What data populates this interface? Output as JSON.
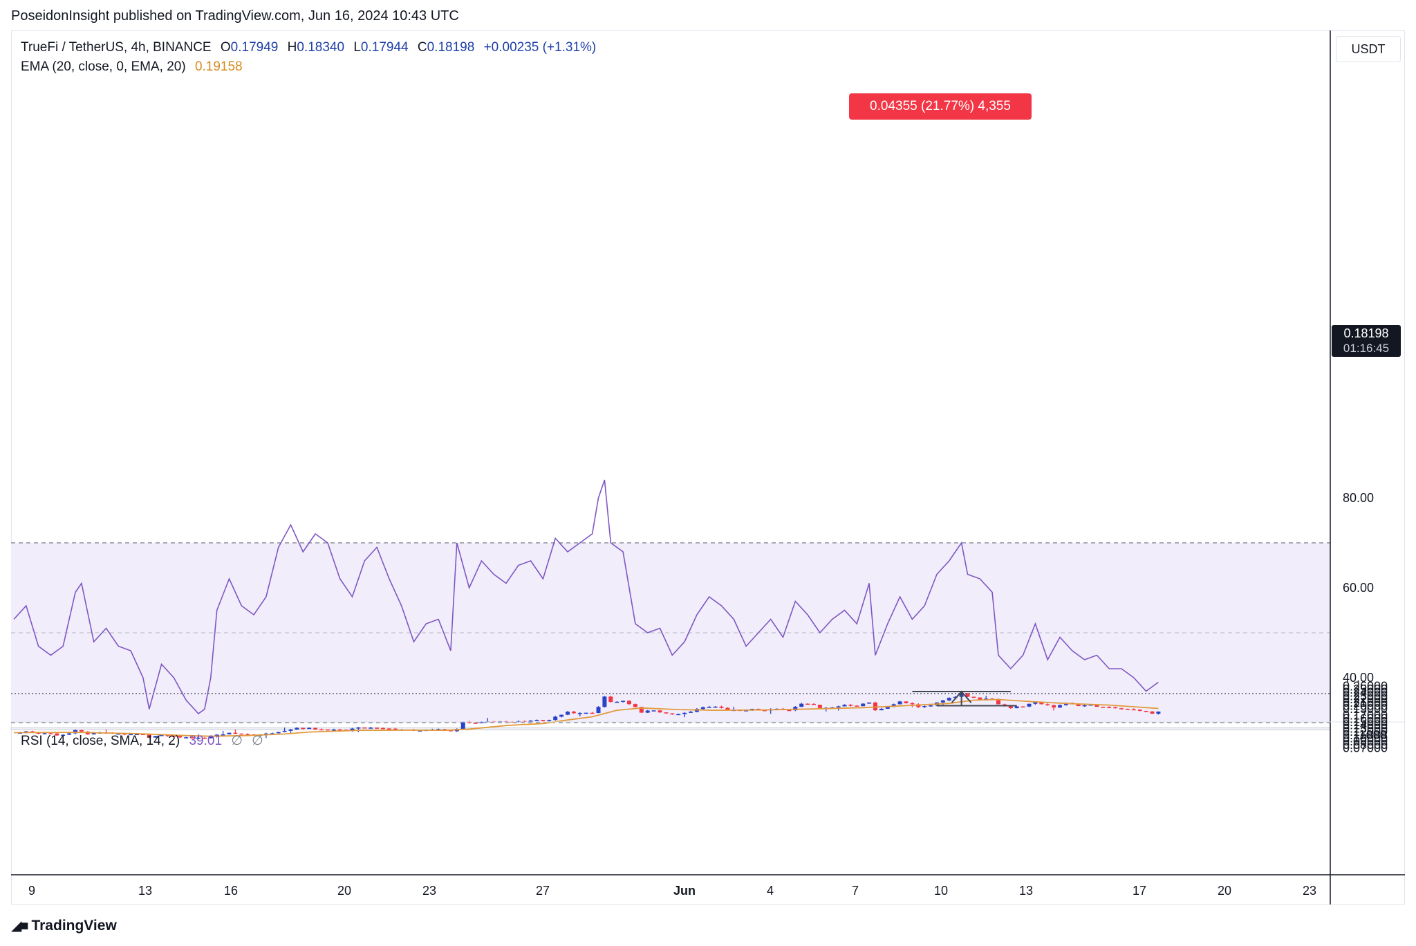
{
  "publish_line": "PoseidonInsight published on TradingView.com, Jun 16, 2024 10:43 UTC",
  "legend": {
    "symbol": "TrueFi / TetherUS, 4h, BINANCE",
    "open_label": "O",
    "open": "0.17949",
    "high_label": "H",
    "high": "0.18340",
    "low_label": "L",
    "low": "0.17944",
    "close_label": "C",
    "close": "0.18198",
    "change": "+0.00235 (+1.31%)",
    "ema_label": "EMA (20, close, 0, EMA, 20)",
    "ema_value": "0.19158",
    "rsi_label": "RSI (14, close, SMA, 14, 2)",
    "rsi_value": "39.01",
    "rsi_flag1": "∅",
    "rsi_flag2": "∅"
  },
  "currency": "USDT",
  "last_price": {
    "price": "0.18198",
    "countdown": "01:16:45"
  },
  "measure": {
    "label": "0.04355 (21.77%) 4,355"
  },
  "footer": {
    "brand": "TradingView"
  },
  "colors": {
    "up": "#2942c9",
    "down": "#f23645",
    "ema": "#e29a3a",
    "rsi": "#7e57c2",
    "zone": "#eceef4",
    "rsi_band": "#f1edfb"
  },
  "chart_data": [
    {
      "type": "candlestick",
      "title": "TrueFi / TetherUS, 4h, BINANCE",
      "ylabel": "USDT",
      "ylim": [
        0.065,
        0.265
      ],
      "yticks": [
        "0.26000",
        "0.25000",
        "0.24000",
        "0.23000",
        "0.22000",
        "0.21000",
        "0.20000",
        "0.19000",
        "0.17000",
        "0.16000",
        "0.15000",
        "0.14000",
        "0.13000",
        "0.12000",
        "0.11000",
        "0.10000",
        "0.09000",
        "0.08000",
        "0.07000"
      ],
      "xticks": [
        "9",
        "13",
        "16",
        "20",
        "23",
        "27",
        "Jun",
        "4",
        "7",
        "10",
        "13",
        "17",
        "20",
        "23"
      ],
      "support_zone": [
        0.1255,
        0.1325
      ],
      "last_price": 0.18198,
      "measure": {
        "from": 0.2,
        "to": 0.24355
      },
      "price_path": [
        [
          0,
          0.117
        ],
        [
          2,
          0.121
        ],
        [
          4,
          0.113
        ],
        [
          6,
          0.114
        ],
        [
          7,
          0.109
        ],
        [
          9,
          0.114
        ],
        [
          10,
          0.125
        ],
        [
          11,
          0.121
        ],
        [
          12,
          0.113
        ],
        [
          13,
          0.118
        ],
        [
          15,
          0.117
        ],
        [
          17,
          0.113
        ],
        [
          19,
          0.112
        ],
        [
          21,
          0.11
        ],
        [
          22,
          0.104
        ],
        [
          24,
          0.108
        ],
        [
          26,
          0.105
        ],
        [
          28,
          0.102
        ],
        [
          30,
          0.1
        ],
        [
          31,
          0.101
        ],
        [
          32,
          0.106
        ],
        [
          33,
          0.11
        ],
        [
          35,
          0.115
        ],
        [
          37,
          0.113
        ],
        [
          39,
          0.11
        ],
        [
          41,
          0.113
        ],
        [
          43,
          0.121
        ],
        [
          45,
          0.128
        ],
        [
          46,
          0.132
        ],
        [
          48,
          0.13
        ],
        [
          50,
          0.127
        ],
        [
          52,
          0.125
        ],
        [
          54,
          0.123
        ],
        [
          55,
          0.129
        ],
        [
          57,
          0.133
        ],
        [
          59,
          0.13
        ],
        [
          61,
          0.128
        ],
        [
          63,
          0.127
        ],
        [
          65,
          0.122
        ],
        [
          67,
          0.124
        ],
        [
          69,
          0.127
        ],
        [
          71,
          0.121
        ],
        [
          72,
          0.13
        ],
        [
          73,
          0.15
        ],
        [
          75,
          0.145
        ],
        [
          77,
          0.15
        ],
        [
          79,
          0.152
        ],
        [
          81,
          0.149
        ],
        [
          83,
          0.152
        ],
        [
          85,
          0.157
        ],
        [
          87,
          0.155
        ],
        [
          88,
          0.168
        ],
        [
          90,
          0.18
        ],
        [
          92,
          0.176
        ],
        [
          94,
          0.179
        ],
        [
          95,
          0.195
        ],
        [
          96,
          0.23
        ],
        [
          97,
          0.21
        ],
        [
          99,
          0.215
        ],
        [
          101,
          0.197
        ],
        [
          102,
          0.18
        ],
        [
          104,
          0.187
        ],
        [
          106,
          0.175
        ],
        [
          108,
          0.173
        ],
        [
          110,
          0.182
        ],
        [
          112,
          0.195
        ],
        [
          114,
          0.197
        ],
        [
          116,
          0.188
        ],
        [
          118,
          0.183
        ],
        [
          120,
          0.189
        ],
        [
          122,
          0.185
        ],
        [
          124,
          0.19
        ],
        [
          126,
          0.187
        ],
        [
          128,
          0.205
        ],
        [
          130,
          0.202
        ],
        [
          131,
          0.192
        ],
        [
          133,
          0.194
        ],
        [
          135,
          0.203
        ],
        [
          137,
          0.2
        ],
        [
          139,
          0.21
        ],
        [
          140,
          0.185
        ],
        [
          142,
          0.198
        ],
        [
          144,
          0.212
        ],
        [
          146,
          0.203
        ],
        [
          147,
          0.195
        ],
        [
          149,
          0.201
        ],
        [
          151,
          0.218
        ],
        [
          153,
          0.229
        ],
        [
          154,
          0.239
        ],
        [
          155,
          0.228
        ],
        [
          157,
          0.22
        ],
        [
          159,
          0.222
        ],
        [
          160,
          0.205
        ],
        [
          162,
          0.194
        ],
        [
          164,
          0.198
        ],
        [
          166,
          0.21
        ],
        [
          168,
          0.202
        ],
        [
          169,
          0.193
        ],
        [
          171,
          0.209
        ],
        [
          173,
          0.2
        ],
        [
          175,
          0.202
        ],
        [
          177,
          0.195
        ],
        [
          179,
          0.192
        ],
        [
          181,
          0.188
        ],
        [
          183,
          0.186
        ],
        [
          185,
          0.176
        ],
        [
          186,
          0.182
        ]
      ],
      "ema_path": [
        [
          0,
          0.117
        ],
        [
          10,
          0.118
        ],
        [
          20,
          0.114
        ],
        [
          28,
          0.108
        ],
        [
          32,
          0.106
        ],
        [
          38,
          0.108
        ],
        [
          44,
          0.113
        ],
        [
          48,
          0.119
        ],
        [
          56,
          0.124
        ],
        [
          64,
          0.125
        ],
        [
          70,
          0.124
        ],
        [
          74,
          0.128
        ],
        [
          80,
          0.139
        ],
        [
          86,
          0.145
        ],
        [
          90,
          0.156
        ],
        [
          94,
          0.166
        ],
        [
          98,
          0.186
        ],
        [
          102,
          0.193
        ],
        [
          108,
          0.188
        ],
        [
          114,
          0.186
        ],
        [
          122,
          0.187
        ],
        [
          130,
          0.19
        ],
        [
          138,
          0.194
        ],
        [
          146,
          0.201
        ],
        [
          152,
          0.207
        ],
        [
          156,
          0.217
        ],
        [
          160,
          0.219
        ],
        [
          166,
          0.212
        ],
        [
          172,
          0.206
        ],
        [
          178,
          0.202
        ],
        [
          186,
          0.19158
        ]
      ]
    },
    {
      "type": "line",
      "title": "RSI (14, close, SMA, 14, 2)",
      "ylim": [
        23,
        87
      ],
      "yticks": [
        "80.00",
        "60.00",
        "40.00"
      ],
      "band": [
        30,
        70
      ],
      "midline": 50,
      "values": [
        [
          0,
          53
        ],
        [
          2,
          56
        ],
        [
          4,
          47
        ],
        [
          6,
          45
        ],
        [
          8,
          47
        ],
        [
          10,
          59
        ],
        [
          11,
          61
        ],
        [
          13,
          48
        ],
        [
          15,
          51
        ],
        [
          17,
          47
        ],
        [
          19,
          46
        ],
        [
          21,
          40
        ],
        [
          22,
          33
        ],
        [
          24,
          43
        ],
        [
          26,
          40
        ],
        [
          28,
          35
        ],
        [
          30,
          32
        ],
        [
          31,
          33
        ],
        [
          32,
          40
        ],
        [
          33,
          55
        ],
        [
          35,
          62
        ],
        [
          37,
          56
        ],
        [
          39,
          54
        ],
        [
          41,
          58
        ],
        [
          43,
          69
        ],
        [
          45,
          74
        ],
        [
          47,
          68
        ],
        [
          49,
          72
        ],
        [
          51,
          70
        ],
        [
          53,
          62
        ],
        [
          55,
          58
        ],
        [
          57,
          66
        ],
        [
          59,
          69
        ],
        [
          61,
          62
        ],
        [
          63,
          56
        ],
        [
          65,
          48
        ],
        [
          67,
          52
        ],
        [
          69,
          53
        ],
        [
          71,
          46
        ],
        [
          72,
          70
        ],
        [
          74,
          60
        ],
        [
          76,
          66
        ],
        [
          78,
          63
        ],
        [
          80,
          61
        ],
        [
          82,
          65
        ],
        [
          84,
          66
        ],
        [
          86,
          62
        ],
        [
          88,
          71
        ],
        [
          90,
          68
        ],
        [
          92,
          70
        ],
        [
          94,
          72
        ],
        [
          95,
          80
        ],
        [
          96,
          84
        ],
        [
          97,
          70
        ],
        [
          99,
          68
        ],
        [
          101,
          52
        ],
        [
          103,
          50
        ],
        [
          105,
          51
        ],
        [
          107,
          45
        ],
        [
          109,
          48
        ],
        [
          111,
          54
        ],
        [
          113,
          58
        ],
        [
          115,
          56
        ],
        [
          117,
          53
        ],
        [
          119,
          47
        ],
        [
          121,
          50
        ],
        [
          123,
          53
        ],
        [
          125,
          49
        ],
        [
          127,
          57
        ],
        [
          129,
          54
        ],
        [
          131,
          50
        ],
        [
          133,
          53
        ],
        [
          135,
          55
        ],
        [
          137,
          52
        ],
        [
          139,
          61
        ],
        [
          140,
          45
        ],
        [
          142,
          52
        ],
        [
          144,
          58
        ],
        [
          146,
          53
        ],
        [
          148,
          56
        ],
        [
          150,
          63
        ],
        [
          152,
          66
        ],
        [
          154,
          70
        ],
        [
          155,
          63
        ],
        [
          157,
          62
        ],
        [
          159,
          59
        ],
        [
          160,
          45
        ],
        [
          162,
          42
        ],
        [
          164,
          45
        ],
        [
          166,
          52
        ],
        [
          168,
          44
        ],
        [
          170,
          49
        ],
        [
          172,
          46
        ],
        [
          174,
          44
        ],
        [
          176,
          45
        ],
        [
          178,
          42
        ],
        [
          180,
          42
        ],
        [
          182,
          40
        ],
        [
          184,
          37
        ],
        [
          186,
          39
        ]
      ]
    }
  ]
}
